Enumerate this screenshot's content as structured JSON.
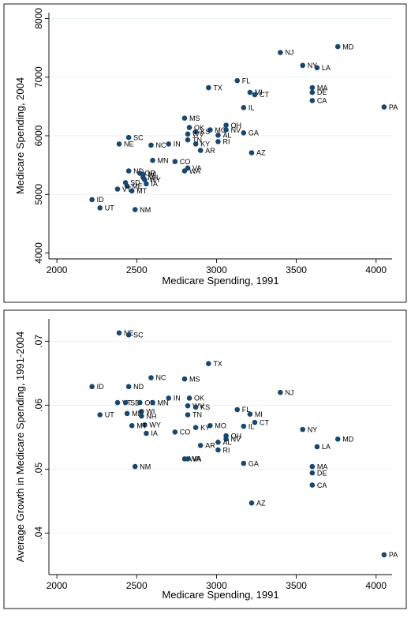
{
  "chart_data": [
    {
      "type": "scatter",
      "xlabel": "Medicare Spending, 1991",
      "ylabel": "Medicare Spending, 2004",
      "xlim": [
        1950,
        4100
      ],
      "ylim": [
        3900,
        8100
      ],
      "xticks": [
        "2000",
        "2500",
        "3000",
        "3500",
        "4000"
      ],
      "yticks": [
        "4000",
        "5000",
        "6000",
        "7000",
        "8000"
      ],
      "grid": true,
      "points": [
        {
          "label": "MD",
          "x": 3760,
          "y": 7520
        },
        {
          "label": "NJ",
          "x": 3400,
          "y": 7420
        },
        {
          "label": "NY",
          "x": 3540,
          "y": 7200
        },
        {
          "label": "LA",
          "x": 3630,
          "y": 7160
        },
        {
          "label": "FL",
          "x": 3130,
          "y": 6940
        },
        {
          "label": "TX",
          "x": 2950,
          "y": 6820
        },
        {
          "label": "MA",
          "x": 3600,
          "y": 6820
        },
        {
          "label": "MI",
          "x": 3210,
          "y": 6740
        },
        {
          "label": "DE",
          "x": 3600,
          "y": 6740
        },
        {
          "label": "CT",
          "x": 3240,
          "y": 6700
        },
        {
          "label": "CA",
          "x": 3600,
          "y": 6600
        },
        {
          "label": "PA",
          "x": 4050,
          "y": 6490
        },
        {
          "label": "IL",
          "x": 3170,
          "y": 6480
        },
        {
          "label": "MS",
          "x": 2800,
          "y": 6300
        },
        {
          "label": "OH",
          "x": 3060,
          "y": 6180
        },
        {
          "label": "OK",
          "x": 2830,
          "y": 6140
        },
        {
          "label": "MO",
          "x": 2960,
          "y": 6100
        },
        {
          "label": "NV",
          "x": 3060,
          "y": 6100
        },
        {
          "label": "KS",
          "x": 2870,
          "y": 6070
        },
        {
          "label": "GA",
          "x": 3170,
          "y": 6050
        },
        {
          "label": "WV",
          "x": 2820,
          "y": 6030
        },
        {
          "label": "AL",
          "x": 3010,
          "y": 6010
        },
        {
          "label": "SC",
          "x": 2450,
          "y": 5970
        },
        {
          "label": "TN",
          "x": 2820,
          "y": 5930
        },
        {
          "label": "RI",
          "x": 3010,
          "y": 5900
        },
        {
          "label": "NE",
          "x": 2390,
          "y": 5860
        },
        {
          "label": "KY",
          "x": 2870,
          "y": 5860
        },
        {
          "label": "IN",
          "x": 2700,
          "y": 5860
        },
        {
          "label": "NC",
          "x": 2590,
          "y": 5840
        },
        {
          "label": "AR",
          "x": 2900,
          "y": 5750
        },
        {
          "label": "AZ",
          "x": 3220,
          "y": 5710
        },
        {
          "label": "MN",
          "x": 2600,
          "y": 5580
        },
        {
          "label": "CO",
          "x": 2740,
          "y": 5560
        },
        {
          "label": "VA",
          "x": 2820,
          "y": 5450
        },
        {
          "label": "WA",
          "x": 2800,
          "y": 5400
        },
        {
          "label": "ND",
          "x": 2450,
          "y": 5400
        },
        {
          "label": "OR",
          "x": 2520,
          "y": 5360
        },
        {
          "label": "WI",
          "x": 2540,
          "y": 5340
        },
        {
          "label": "NH",
          "x": 2540,
          "y": 5290
        },
        {
          "label": "WY",
          "x": 2550,
          "y": 5250
        },
        {
          "label": "IA",
          "x": 2560,
          "y": 5180
        },
        {
          "label": "SD",
          "x": 2430,
          "y": 5200
        },
        {
          "label": "ME",
          "x": 2440,
          "y": 5140
        },
        {
          "label": "MT",
          "x": 2470,
          "y": 5060
        },
        {
          "label": "VT",
          "x": 2380,
          "y": 5090
        },
        {
          "label": "ID",
          "x": 2220,
          "y": 4910
        },
        {
          "label": "UT",
          "x": 2270,
          "y": 4770
        },
        {
          "label": "NM",
          "x": 2490,
          "y": 4740
        }
      ]
    },
    {
      "type": "scatter",
      "xlabel": "Medicare Spending, 1991",
      "ylabel": "Average Growth in Medicare Spending, 1991-2004",
      "xlim": [
        1950,
        4100
      ],
      "ylim": [
        0.0335,
        0.0735
      ],
      "xticks": [
        "2000",
        "2500",
        "3000",
        "3500",
        "4000"
      ],
      "yticks": [
        ".04",
        ".05",
        ".06",
        ".07"
      ],
      "ytick_values": [
        0.04,
        0.05,
        0.06,
        0.07
      ],
      "grid": true,
      "points": [
        {
          "label": "NE",
          "x": 2390,
          "y": 0.0713
        },
        {
          "label": "SC",
          "x": 2450,
          "y": 0.071
        },
        {
          "label": "TX",
          "x": 2950,
          "y": 0.0665
        },
        {
          "label": "NC",
          "x": 2590,
          "y": 0.0643
        },
        {
          "label": "MS",
          "x": 2800,
          "y": 0.0641
        },
        {
          "label": "ID",
          "x": 2220,
          "y": 0.0629
        },
        {
          "label": "ND",
          "x": 2450,
          "y": 0.0629
        },
        {
          "label": "NJ",
          "x": 3400,
          "y": 0.062
        },
        {
          "label": "IN",
          "x": 2700,
          "y": 0.0611
        },
        {
          "label": "OK",
          "x": 2830,
          "y": 0.0611
        },
        {
          "label": "VT",
          "x": 2380,
          "y": 0.0604
        },
        {
          "label": "SD",
          "x": 2430,
          "y": 0.0604
        },
        {
          "label": "OR",
          "x": 2520,
          "y": 0.0604
        },
        {
          "label": "MN",
          "x": 2600,
          "y": 0.0604
        },
        {
          "label": "WV",
          "x": 2820,
          "y": 0.0599
        },
        {
          "label": "KS",
          "x": 2870,
          "y": 0.0597
        },
        {
          "label": "FL",
          "x": 3130,
          "y": 0.0593
        },
        {
          "label": "WI",
          "x": 2530,
          "y": 0.059
        },
        {
          "label": "ME",
          "x": 2440,
          "y": 0.0587
        },
        {
          "label": "MI",
          "x": 3210,
          "y": 0.0586
        },
        {
          "label": "UT",
          "x": 2270,
          "y": 0.0585
        },
        {
          "label": "TN",
          "x": 2820,
          "y": 0.0585
        },
        {
          "label": "NH",
          "x": 2530,
          "y": 0.0583
        },
        {
          "label": "CT",
          "x": 3240,
          "y": 0.0573
        },
        {
          "label": "WY",
          "x": 2550,
          "y": 0.0569
        },
        {
          "label": "MT",
          "x": 2470,
          "y": 0.0568
        },
        {
          "label": "MO",
          "x": 2960,
          "y": 0.0568
        },
        {
          "label": "IL",
          "x": 3170,
          "y": 0.0567
        },
        {
          "label": "KY",
          "x": 2870,
          "y": 0.0565
        },
        {
          "label": "NY",
          "x": 3540,
          "y": 0.0562
        },
        {
          "label": "CO",
          "x": 2740,
          "y": 0.0558
        },
        {
          "label": "IA",
          "x": 2560,
          "y": 0.0556
        },
        {
          "label": "OH",
          "x": 3060,
          "y": 0.0552
        },
        {
          "label": "NV",
          "x": 3060,
          "y": 0.0547
        },
        {
          "label": "MD",
          "x": 3760,
          "y": 0.0547
        },
        {
          "label": "AL",
          "x": 3010,
          "y": 0.0542
        },
        {
          "label": "AR",
          "x": 2900,
          "y": 0.0537
        },
        {
          "label": "LA",
          "x": 3630,
          "y": 0.0535
        },
        {
          "label": "RI",
          "x": 3010,
          "y": 0.053
        },
        {
          "label": "WA",
          "x": 2800,
          "y": 0.0516
        },
        {
          "label": "VA",
          "x": 2820,
          "y": 0.0516
        },
        {
          "label": "GA",
          "x": 3170,
          "y": 0.0509
        },
        {
          "label": "NM",
          "x": 2490,
          "y": 0.0504
        },
        {
          "label": "MA",
          "x": 3600,
          "y": 0.0504
        },
        {
          "label": "DE",
          "x": 3600,
          "y": 0.0494
        },
        {
          "label": "CA",
          "x": 3600,
          "y": 0.0475
        },
        {
          "label": "AZ",
          "x": 3220,
          "y": 0.0447
        },
        {
          "label": "PA",
          "x": 4050,
          "y": 0.0366
        }
      ]
    }
  ],
  "colors": {
    "point": "#1a476f",
    "grid": "#eaf2f3",
    "panel_background": "#ffffff",
    "outer_background": "#ffffff"
  }
}
